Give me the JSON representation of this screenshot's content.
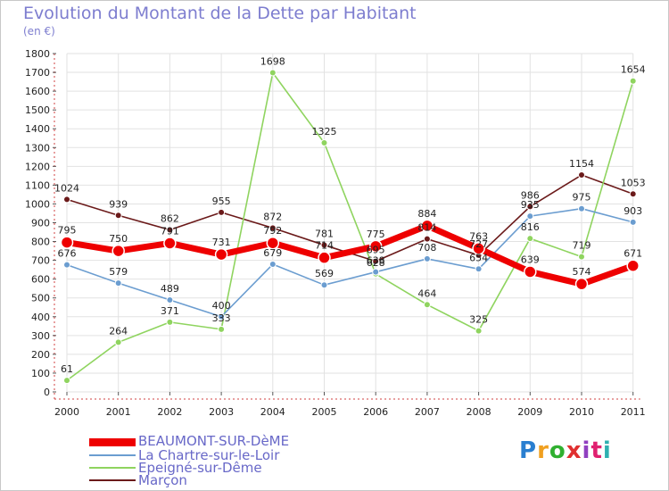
{
  "page": {
    "title": "Evolution du Montant de la Dette par Habitant",
    "subtitle": "(en €)",
    "logo": "Proxiti"
  },
  "chart_data": {
    "type": "line",
    "title": "Evolution du Montant de la Dette par Habitant",
    "ylabel": "(en €)",
    "xlabel": "",
    "ylim": [
      0,
      1800
    ],
    "yticks": [
      0,
      100,
      200,
      300,
      400,
      500,
      600,
      700,
      800,
      900,
      1000,
      1100,
      1200,
      1300,
      1400,
      1500,
      1600,
      1700,
      1800
    ],
    "categories": [
      "2000",
      "2001",
      "2002",
      "2003",
      "2004",
      "2005",
      "2006",
      "2007",
      "2008",
      "2009",
      "2010",
      "2011"
    ],
    "grid": true,
    "legend": "bottom-left",
    "series": [
      {
        "name": "Marçon",
        "color": "#6b1a1a",
        "values": [
          1024,
          939,
          862,
          955,
          872,
          781,
          695,
          814,
          727,
          986,
          1154,
          1053
        ]
      },
      {
        "name": "Epeigné-sur-Dême",
        "color": "#8fd45f",
        "values": [
          61,
          264,
          371,
          333,
          1698,
          1325,
          628,
          464,
          325,
          816,
          719,
          1654
        ]
      },
      {
        "name": "La Chartre-sur-le-Loir",
        "color": "#6b9dd0",
        "values": [
          676,
          579,
          489,
          400,
          679,
          569,
          638,
          708,
          654,
          935,
          975,
          903
        ]
      },
      {
        "name": "BEAUMONT-SUR-DèME",
        "color": "#ee0000",
        "values": [
          795,
          750,
          791,
          731,
          792,
          714,
          775,
          884,
          763,
          639,
          574,
          671
        ]
      }
    ],
    "legend_entries": [
      "BEAUMONT-SUR-DèME",
      "La Chartre-sur-le-Loir",
      "Epeigné-sur-Dême",
      "Marçon"
    ]
  }
}
